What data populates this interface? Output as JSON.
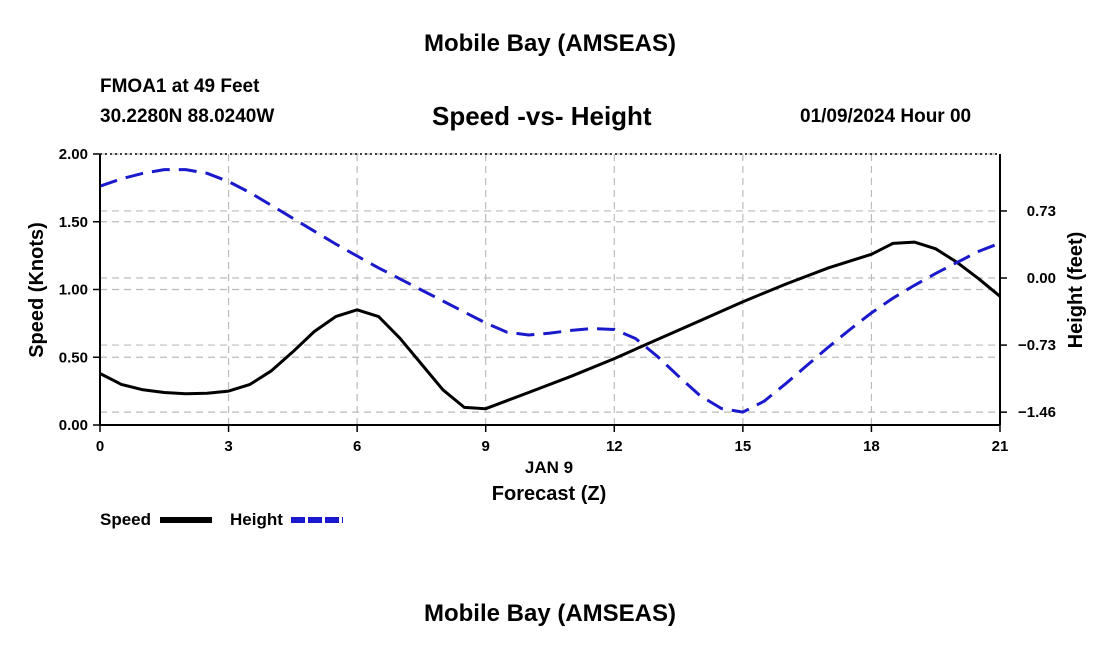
{
  "header": {
    "title": "Mobile Bay (AMSEAS)",
    "station": "FMOA1 at 49 Feet",
    "coords": "30.2280N  88.0240W",
    "subtitle": "Speed -vs- Height",
    "datetime": "01/09/2024 Hour 00"
  },
  "footer": {
    "title": "Mobile Bay (AMSEAS)"
  },
  "legend": {
    "speed_label": "Speed",
    "height_label": "Height"
  },
  "chart_data": {
    "type": "line",
    "title": "Speed -vs- Height",
    "xlabel": "Forecast (Z)",
    "xlabel_date": "JAN 9",
    "ylabel_left": "Speed (Knots)",
    "ylabel_right": "Height (feet)",
    "xlim": [
      0,
      21
    ],
    "ylim_left": [
      0,
      2
    ],
    "ylim_right": [
      -1.6,
      1.35
    ],
    "grid": true,
    "x_ticks": [
      0,
      3,
      6,
      9,
      12,
      15,
      18,
      21
    ],
    "x_tick_labels": [
      "0",
      "3",
      "6",
      "9",
      "12",
      "15",
      "18",
      "21"
    ],
    "left_ticks": [
      0,
      0.5,
      1.0,
      1.5,
      2.0
    ],
    "left_tick_labels": [
      "0.00",
      "0.50",
      "1.00",
      "1.50",
      "2.00"
    ],
    "right_ticks": [
      -1.46,
      -0.73,
      0.0,
      0.73
    ],
    "right_tick_labels": [
      "−1.46",
      "−0.73",
      "0.00",
      "0.73"
    ],
    "colors": {
      "speed": "#000000",
      "height": "#1a1acc",
      "grid": "#bbbbbb"
    },
    "series": [
      {
        "name": "Speed",
        "axis": "left",
        "style": "solid",
        "x": [
          0,
          0.5,
          1,
          1.5,
          2,
          2.5,
          3,
          3.5,
          4,
          4.5,
          5,
          5.5,
          6,
          6.5,
          7,
          7.5,
          8,
          8.5,
          9,
          10,
          11,
          12,
          13,
          14,
          15,
          16,
          17,
          18,
          18.5,
          19,
          19.5,
          20,
          20.5,
          21
        ],
        "values": [
          0.38,
          0.3,
          0.26,
          0.24,
          0.23,
          0.235,
          0.25,
          0.3,
          0.4,
          0.54,
          0.69,
          0.8,
          0.85,
          0.8,
          0.64,
          0.45,
          0.26,
          0.13,
          0.12,
          0.24,
          0.36,
          0.49,
          0.63,
          0.77,
          0.91,
          1.04,
          1.16,
          1.26,
          1.34,
          1.35,
          1.3,
          1.2,
          1.08,
          0.95
        ]
      },
      {
        "name": "Height",
        "axis": "right",
        "style": "dashed",
        "x": [
          0,
          0.5,
          1,
          1.5,
          2,
          2.5,
          3,
          3.5,
          4,
          4.5,
          5,
          5.5,
          6,
          6.5,
          7,
          7.5,
          8,
          8.5,
          9,
          9.5,
          10,
          10.5,
          11,
          11.5,
          12,
          12.5,
          13,
          13.5,
          14,
          14.5,
          15,
          15.5,
          16,
          16.5,
          17,
          17.5,
          18,
          18.5,
          19,
          19.5,
          20,
          20.5,
          21
        ],
        "values": [
          1.0,
          1.08,
          1.14,
          1.18,
          1.18,
          1.14,
          1.05,
          0.93,
          0.79,
          0.65,
          0.51,
          0.37,
          0.24,
          0.11,
          -0.01,
          -0.13,
          -0.25,
          -0.37,
          -0.49,
          -0.59,
          -0.62,
          -0.6,
          -0.57,
          -0.55,
          -0.56,
          -0.66,
          -0.85,
          -1.07,
          -1.28,
          -1.42,
          -1.46,
          -1.34,
          -1.15,
          -0.95,
          -0.75,
          -0.56,
          -0.38,
          -0.22,
          -0.08,
          0.05,
          0.17,
          0.29,
          0.38
        ]
      }
    ]
  }
}
